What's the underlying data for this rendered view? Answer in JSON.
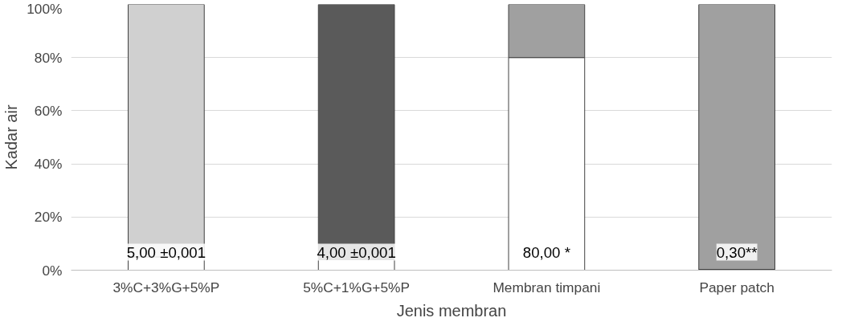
{
  "chart_data": {
    "type": "bar",
    "stacked": true,
    "xlabel": "Jenis membran",
    "ylabel": "Kadar air",
    "categories": [
      "3%C+3%G+5%P",
      "5%C+1%G+5%P",
      "Membran timpani",
      "Paper patch"
    ],
    "series": [
      {
        "color": "#ffffff",
        "values": [
          5,
          4,
          80,
          0.3
        ],
        "value_labels": [
          "5,00 ±0,001",
          "4,00 ±0,001",
          "80,00 *",
          "0,30**"
        ]
      },
      {
        "colors": [
          "#d0d0d0",
          "#5a5a5a",
          "#a0a0a0",
          "#a0a0a0"
        ],
        "values": [
          95,
          96,
          20,
          99.7
        ]
      }
    ],
    "ylim": [
      0,
      100
    ],
    "yticks": [
      {
        "value": 0,
        "label": "0%"
      },
      {
        "value": 20,
        "label": "20%"
      },
      {
        "value": 40,
        "label": "40%"
      },
      {
        "value": 60,
        "label": "60%"
      },
      {
        "value": 80,
        "label": "80%"
      },
      {
        "value": 100,
        "label": "100%"
      }
    ],
    "grid": "y"
  }
}
